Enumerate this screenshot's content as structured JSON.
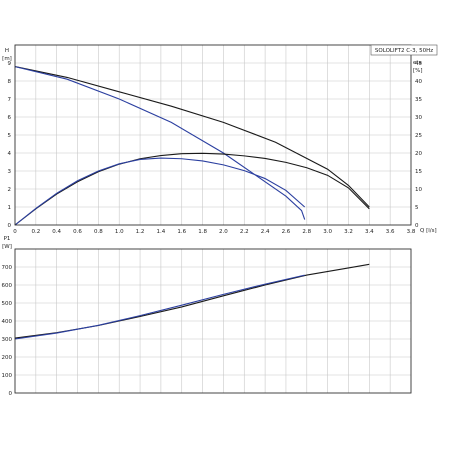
{
  "chart_data": [
    {
      "type": "line",
      "title": "SOLOLIFT2 C-3, 50Hz",
      "xlabel": "Q [l/s]",
      "ylabel_left": "H [m]",
      "ylabel_right": "eta [%]",
      "xlim": [
        0,
        3.8
      ],
      "ylim": [
        0,
        10
      ],
      "ylim_right": [
        0,
        50
      ],
      "x_ticks": [
        "0",
        "0.2",
        "0.4",
        "0.6",
        "0.8",
        "1.0",
        "1.2",
        "1.4",
        "1.6",
        "1.8",
        "2.0",
        "2.2",
        "2.4",
        "2.6",
        "2.8",
        "3.0",
        "3.2",
        "3.4",
        "3.6",
        "3.8"
      ],
      "y_ticks": [
        "0",
        "1",
        "2",
        "3",
        "4",
        "5",
        "6",
        "7",
        "8",
        "9"
      ],
      "y_ticks_right": [
        "0",
        "5",
        "10",
        "15",
        "20",
        "25",
        "30",
        "35",
        "40",
        "45"
      ],
      "grid": true,
      "series": [
        {
          "color": "#1a1a1a",
          "axis": "left",
          "x": [
            0,
            0.5,
            1.0,
            1.5,
            2.0,
            2.5,
            3.0,
            3.2,
            3.4
          ],
          "values": [
            8.8,
            8.2,
            7.4,
            6.6,
            5.7,
            4.6,
            3.1,
            2.2,
            1.0
          ]
        },
        {
          "color": "#2b3fa0",
          "axis": "left",
          "x": [
            0,
            0.5,
            1.0,
            1.5,
            2.0,
            2.3,
            2.6,
            2.75,
            2.78
          ],
          "values": [
            8.8,
            8.1,
            7.0,
            5.7,
            4.0,
            2.8,
            1.6,
            0.8,
            0.3
          ]
        },
        {
          "color": "#1a1a1a",
          "axis": "right",
          "x": [
            0,
            0.2,
            0.4,
            0.6,
            0.8,
            1.0,
            1.2,
            1.4,
            1.6,
            1.8,
            2.0,
            2.2,
            2.4,
            2.6,
            2.8,
            3.0,
            3.2,
            3.4
          ],
          "values": [
            0,
            4.5,
            8.6,
            12.0,
            14.8,
            16.9,
            18.4,
            19.3,
            19.8,
            19.9,
            19.7,
            19.2,
            18.5,
            17.4,
            15.9,
            13.8,
            10.3,
            4.5
          ]
        },
        {
          "color": "#2b3fa0",
          "axis": "right",
          "x": [
            0,
            0.2,
            0.4,
            0.6,
            0.8,
            1.0,
            1.2,
            1.4,
            1.6,
            1.8,
            2.0,
            2.2,
            2.4,
            2.6,
            2.78
          ],
          "values": [
            0,
            4.6,
            8.8,
            12.3,
            15.0,
            17.0,
            18.2,
            18.6,
            18.4,
            17.8,
            16.7,
            15.1,
            12.9,
            9.6,
            5.0
          ]
        }
      ]
    },
    {
      "type": "line",
      "ylabel": "P1 [W]",
      "xlim": [
        0,
        3.8
      ],
      "ylim": [
        0,
        800
      ],
      "y_ticks": [
        "0",
        "100",
        "200",
        "300",
        "400",
        "500",
        "600",
        "700"
      ],
      "grid": true,
      "series": [
        {
          "color": "#1a1a1a",
          "x": [
            0,
            0.4,
            0.8,
            1.2,
            1.6,
            2.0,
            2.4,
            2.8,
            3.2,
            3.4
          ],
          "values": [
            305,
            335,
            375,
            425,
            478,
            540,
            600,
            655,
            695,
            715
          ]
        },
        {
          "color": "#2b3fa0",
          "x": [
            0,
            0.4,
            0.8,
            1.2,
            1.6,
            2.0,
            2.4,
            2.78
          ],
          "values": [
            300,
            333,
            376,
            430,
            488,
            548,
            605,
            655
          ]
        }
      ]
    }
  ]
}
